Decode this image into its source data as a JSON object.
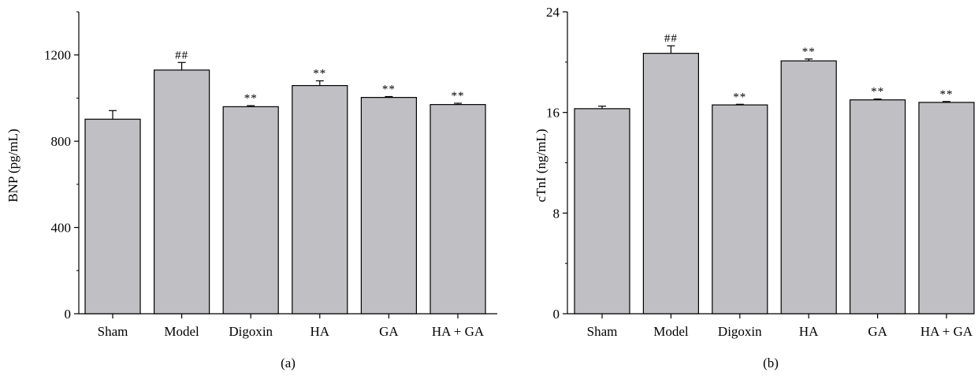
{
  "chart_data": [
    {
      "type": "bar",
      "panel_label": "(a)",
      "categories": [
        "Sham",
        "Model",
        "Digoxin",
        "HA",
        "GA",
        "HA + GA"
      ],
      "values": [
        902,
        1130,
        960,
        1058,
        1003,
        970
      ],
      "errors": [
        40,
        35,
        5,
        22,
        4,
        6
      ],
      "annotations": [
        "",
        "##",
        "**",
        "**",
        "**",
        "**"
      ],
      "xlabel": "",
      "ylabel": "BNP (pg/mL)",
      "ylim": [
        0,
        1200
      ],
      "yticks": [
        0,
        400,
        800,
        1200
      ],
      "grid": false,
      "bar_color": "#c0c0c4"
    },
    {
      "type": "bar",
      "panel_label": "(b)",
      "categories": [
        "Sham",
        "Model",
        "Digoxin",
        "HA",
        "GA",
        "HA + GA"
      ],
      "values": [
        16.3,
        20.7,
        16.6,
        20.1,
        17.0,
        16.8
      ],
      "errors": [
        0.2,
        0.6,
        0.05,
        0.15,
        0.07,
        0.07
      ],
      "annotations": [
        "",
        "##",
        "**",
        "**",
        "**",
        "**"
      ],
      "xlabel": "",
      "ylabel": "cTnI (ng/mL)",
      "ylim": [
        0,
        24
      ],
      "yticks": [
        0,
        8,
        16,
        24
      ],
      "grid": false,
      "bar_color": "#c0c0c4"
    }
  ]
}
